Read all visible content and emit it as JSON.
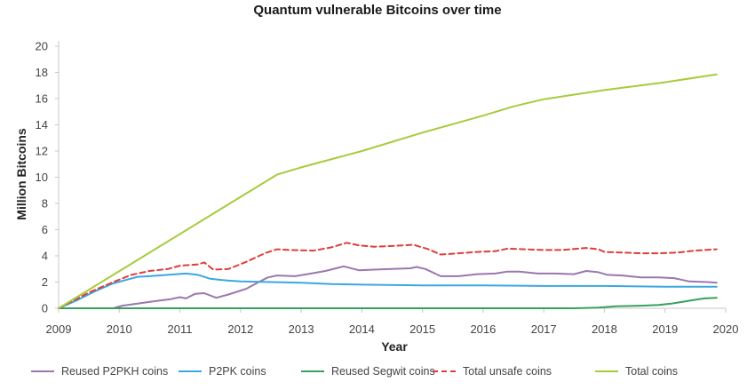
{
  "chart_data": {
    "type": "line",
    "title": "Quantum vulnerable Bitcoins over time",
    "xlabel": "Year",
    "ylabel": "Million Bitcoins",
    "xlim": [
      2009,
      2020
    ],
    "ylim": [
      0,
      20
    ],
    "x_ticks": [
      2009,
      2010,
      2011,
      2012,
      2013,
      2014,
      2015,
      2016,
      2017,
      2018,
      2019,
      2020
    ],
    "y_ticks": [
      0,
      2,
      4,
      6,
      8,
      10,
      12,
      14,
      16,
      18,
      20
    ],
    "grid": false,
    "legend_position": "bottom",
    "series": [
      {
        "name": "Reused P2PKH coins",
        "color": "#9a78ad",
        "dash": "solid",
        "points": [
          [
            2009.0,
            0
          ],
          [
            2009.9,
            0
          ],
          [
            2010.05,
            0.2
          ],
          [
            2010.3,
            0.35
          ],
          [
            2010.6,
            0.55
          ],
          [
            2010.85,
            0.7
          ],
          [
            2011.0,
            0.85
          ],
          [
            2011.1,
            0.75
          ],
          [
            2011.25,
            1.1
          ],
          [
            2011.4,
            1.15
          ],
          [
            2011.6,
            0.8
          ],
          [
            2011.8,
            1.05
          ],
          [
            2012.1,
            1.5
          ],
          [
            2012.3,
            2.0
          ],
          [
            2012.45,
            2.35
          ],
          [
            2012.6,
            2.5
          ],
          [
            2012.9,
            2.45
          ],
          [
            2013.1,
            2.6
          ],
          [
            2013.4,
            2.85
          ],
          [
            2013.7,
            3.2
          ],
          [
            2013.95,
            2.9
          ],
          [
            2014.2,
            2.95
          ],
          [
            2014.5,
            3.0
          ],
          [
            2014.8,
            3.05
          ],
          [
            2014.9,
            3.15
          ],
          [
            2015.05,
            3.0
          ],
          [
            2015.3,
            2.45
          ],
          [
            2015.6,
            2.45
          ],
          [
            2015.9,
            2.6
          ],
          [
            2016.2,
            2.65
          ],
          [
            2016.4,
            2.8
          ],
          [
            2016.6,
            2.8
          ],
          [
            2016.9,
            2.65
          ],
          [
            2017.2,
            2.65
          ],
          [
            2017.5,
            2.6
          ],
          [
            2017.7,
            2.85
          ],
          [
            2017.9,
            2.75
          ],
          [
            2018.05,
            2.55
          ],
          [
            2018.3,
            2.5
          ],
          [
            2018.6,
            2.35
          ],
          [
            2018.9,
            2.35
          ],
          [
            2019.15,
            2.3
          ],
          [
            2019.4,
            2.05
          ],
          [
            2019.7,
            2.0
          ],
          [
            2019.85,
            1.95
          ]
        ]
      },
      {
        "name": "P2PK coins",
        "color": "#3ba7e0",
        "dash": "solid",
        "points": [
          [
            2009.0,
            0
          ],
          [
            2009.3,
            0.6
          ],
          [
            2009.6,
            1.3
          ],
          [
            2009.9,
            1.9
          ],
          [
            2010.1,
            2.15
          ],
          [
            2010.3,
            2.4
          ],
          [
            2010.5,
            2.45
          ],
          [
            2010.8,
            2.55
          ],
          [
            2011.1,
            2.65
          ],
          [
            2011.3,
            2.55
          ],
          [
            2011.5,
            2.25
          ],
          [
            2011.7,
            2.15
          ],
          [
            2012.0,
            2.05
          ],
          [
            2012.5,
            2.0
          ],
          [
            2013.0,
            1.95
          ],
          [
            2013.5,
            1.85
          ],
          [
            2014.0,
            1.8
          ],
          [
            2015.0,
            1.75
          ],
          [
            2016.0,
            1.75
          ],
          [
            2017.0,
            1.7
          ],
          [
            2018.0,
            1.7
          ],
          [
            2019.0,
            1.65
          ],
          [
            2019.85,
            1.65
          ]
        ]
      },
      {
        "name": "Reused Segwit coins",
        "color": "#3a9e5f",
        "dash": "solid",
        "points": [
          [
            2009.0,
            0
          ],
          [
            2017.5,
            0
          ],
          [
            2017.9,
            0.05
          ],
          [
            2018.2,
            0.15
          ],
          [
            2018.6,
            0.2
          ],
          [
            2018.9,
            0.25
          ],
          [
            2019.1,
            0.35
          ],
          [
            2019.3,
            0.5
          ],
          [
            2019.5,
            0.65
          ],
          [
            2019.65,
            0.75
          ],
          [
            2019.85,
            0.8
          ]
        ]
      },
      {
        "name": "Total unsafe coins",
        "color": "#e03c3c",
        "dash": "dashed",
        "points": [
          [
            2009.0,
            0
          ],
          [
            2009.5,
            1.2
          ],
          [
            2009.9,
            2.0
          ],
          [
            2010.2,
            2.55
          ],
          [
            2010.5,
            2.85
          ],
          [
            2010.8,
            3.0
          ],
          [
            2011.0,
            3.25
          ],
          [
            2011.3,
            3.35
          ],
          [
            2011.4,
            3.5
          ],
          [
            2011.55,
            2.95
          ],
          [
            2011.8,
            3.0
          ],
          [
            2012.1,
            3.55
          ],
          [
            2012.4,
            4.2
          ],
          [
            2012.6,
            4.5
          ],
          [
            2012.8,
            4.45
          ],
          [
            2013.2,
            4.4
          ],
          [
            2013.5,
            4.65
          ],
          [
            2013.75,
            5.0
          ],
          [
            2013.95,
            4.8
          ],
          [
            2014.2,
            4.7
          ],
          [
            2014.5,
            4.75
          ],
          [
            2014.85,
            4.85
          ],
          [
            2015.1,
            4.5
          ],
          [
            2015.3,
            4.1
          ],
          [
            2015.6,
            4.2
          ],
          [
            2015.9,
            4.3
          ],
          [
            2016.2,
            4.35
          ],
          [
            2016.4,
            4.55
          ],
          [
            2016.7,
            4.5
          ],
          [
            2017.0,
            4.45
          ],
          [
            2017.3,
            4.45
          ],
          [
            2017.7,
            4.6
          ],
          [
            2017.9,
            4.5
          ],
          [
            2018.0,
            4.3
          ],
          [
            2018.3,
            4.25
          ],
          [
            2018.6,
            4.2
          ],
          [
            2018.9,
            4.2
          ],
          [
            2019.2,
            4.25
          ],
          [
            2019.5,
            4.4
          ],
          [
            2019.85,
            4.5
          ]
        ]
      },
      {
        "name": "Total coins",
        "color": "#a6cc3c",
        "dash": "solid",
        "points": [
          [
            2009.0,
            0
          ],
          [
            2012.6,
            10.2
          ],
          [
            2013.0,
            10.75
          ],
          [
            2014.0,
            12.0
          ],
          [
            2015.0,
            13.4
          ],
          [
            2016.0,
            14.7
          ],
          [
            2016.5,
            15.4
          ],
          [
            2017.0,
            15.95
          ],
          [
            2018.0,
            16.65
          ],
          [
            2019.0,
            17.25
          ],
          [
            2019.85,
            17.85
          ]
        ]
      }
    ]
  }
}
